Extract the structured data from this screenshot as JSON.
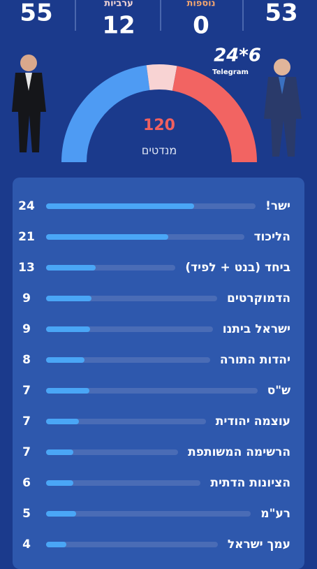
{
  "header": {
    "left_bloc": 55,
    "arab": {
      "label": "ערביות",
      "value": 12
    },
    "other": {
      "label": "נוספות",
      "value": 0
    },
    "right_bloc": 53
  },
  "logo": {
    "text": "24*6",
    "subtitle": "Telegram"
  },
  "gauge": {
    "total": 120,
    "unit": "מנדטים",
    "colors": [
      "#4e9bf3",
      "#f8d3d3",
      "#f26462"
    ]
  },
  "parties": [
    {
      "name": "ישר!",
      "seats": 24
    },
    {
      "name": "הליכוד",
      "seats": 21
    },
    {
      "name": "ביחד (בנט + לפיד)",
      "seats": 13
    },
    {
      "name": "הדמוקרטים",
      "seats": 9
    },
    {
      "name": "ישראל ביתנו",
      "seats": 9
    },
    {
      "name": "יהדות התורה",
      "seats": 8
    },
    {
      "name": "ש\"ס",
      "seats": 7
    },
    {
      "name": "עוצמה יהודית",
      "seats": 7
    },
    {
      "name": "הרשימה המשותפת",
      "seats": 7
    },
    {
      "name": "הציונות הדתית",
      "seats": 6
    },
    {
      "name": "רע\"מ",
      "seats": 5
    },
    {
      "name": "עמך ישראל",
      "seats": 4
    }
  ]
}
